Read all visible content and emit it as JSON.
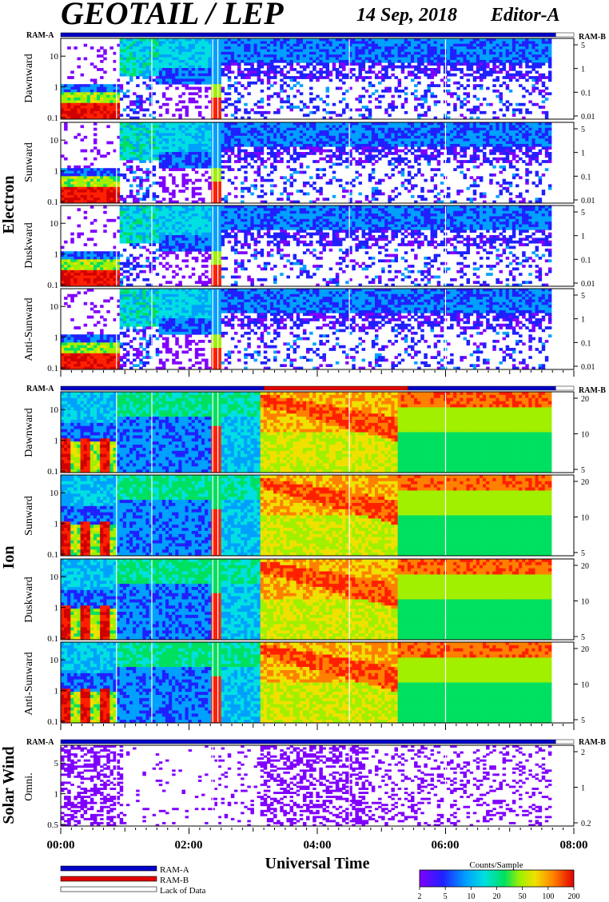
{
  "header": {
    "title": "GEOTAIL / LEP",
    "date": "14 Sep, 2018",
    "editor": "Editor-A"
  },
  "ram": {
    "left_label": "RAM-A",
    "right_label": "RAM-B"
  },
  "groups": {
    "electron": "Electron",
    "ion": "Ion",
    "solar_wind": "Solar Wind"
  },
  "panels": {
    "electron": [
      "Dawnward",
      "Sunward",
      "Duskward",
      "Anti-Sunward"
    ],
    "ion": [
      "Dawnward",
      "Sunward",
      "Duskward",
      "Anti-Sunward"
    ],
    "solar_wind": [
      "Omni."
    ]
  },
  "x_axis": {
    "title": "Universal Time",
    "ticks": [
      "00:00",
      "02:00",
      "04:00",
      "06:00",
      "08:00"
    ]
  },
  "legend": {
    "ram_a": "RAM-A",
    "ram_b": "RAM-B",
    "lack": "Lack of Data",
    "colors": {
      "ram_a": "#0000c8",
      "ram_b": "#e00000",
      "lack": "#ffffff"
    }
  },
  "colorbar": {
    "title": "Counts/Sample",
    "ticks": [
      "2",
      "5",
      "10",
      "20",
      "50",
      "100",
      "200"
    ]
  },
  "chart_data": [
    {
      "type": "heatmap",
      "title": "GEOTAIL / LEP",
      "group": "Electron",
      "panels": [
        "Dawnward",
        "Sunward",
        "Duskward",
        "Anti-Sunward"
      ],
      "xlabel": "Universal Time",
      "x_range": [
        "00:00",
        "08:00"
      ],
      "x_ticks": [
        "00:00",
        "02:00",
        "04:00",
        "06:00",
        "08:00"
      ],
      "y_left_ticks": [
        "10",
        "1",
        "0.1"
      ],
      "y_right_ticks": [
        "5",
        "1",
        "0.1",
        "0.01"
      ],
      "ram_bar": [
        {
          "mode": "RAM-A",
          "start": "00:00",
          "end": "07:43"
        },
        {
          "mode": "Lack of Data",
          "start": "07:43",
          "end": "08:00"
        }
      ],
      "data_gaps_ut": [
        "00:52",
        "01:25",
        "02:22",
        "02:26"
      ],
      "data_end": "07:43"
    },
    {
      "type": "heatmap",
      "group": "Ion",
      "panels": [
        "Dawnward",
        "Sunward",
        "Duskward",
        "Anti-Sunward"
      ],
      "xlabel": "Universal Time",
      "x_range": [
        "00:00",
        "08:00"
      ],
      "y_left_ticks": [
        "10",
        "1",
        "0.1"
      ],
      "y_right_ticks": [
        "20",
        "10",
        "5"
      ],
      "ram_bar": [
        {
          "mode": "RAM-A",
          "start": "00:00",
          "end": "03:10"
        },
        {
          "mode": "RAM-B",
          "start": "03:10",
          "end": "05:25"
        },
        {
          "mode": "RAM-A",
          "start": "05:25",
          "end": "07:43"
        },
        {
          "mode": "Lack of Data",
          "start": "07:43",
          "end": "08:00"
        }
      ],
      "data_end": "07:43"
    },
    {
      "type": "heatmap",
      "group": "Solar Wind",
      "panels": [
        "Omni."
      ],
      "xlabel": "Universal Time",
      "x_range": [
        "00:00",
        "08:00"
      ],
      "y_left_ticks": [
        "5",
        "1",
        "0.5"
      ],
      "y_right_ticks": [
        "2",
        "1",
        "0.2"
      ],
      "ram_bar": [
        {
          "mode": "RAM-A",
          "start": "00:00",
          "end": "07:43"
        },
        {
          "mode": "Lack of Data",
          "start": "07:43",
          "end": "08:00"
        }
      ],
      "data_end": "07:43"
    }
  ],
  "palette": [
    "#8000ff",
    "#2020ff",
    "#00a0ff",
    "#00e0e0",
    "#00e060",
    "#a0f000",
    "#f0e000",
    "#ff8000",
    "#ff2000",
    "#d00000"
  ]
}
